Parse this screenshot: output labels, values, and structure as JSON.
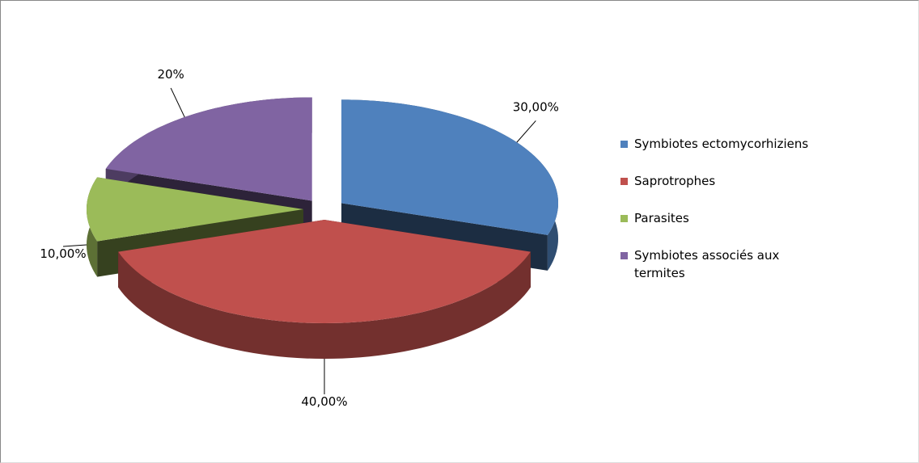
{
  "chart_data": {
    "type": "pie3d",
    "categories": [
      "Symbiotes ectomycorhiziens",
      "Saprotrophes",
      "Parasites",
      "Symbiotes associés aux termites"
    ],
    "values": [
      30,
      40,
      10,
      20
    ],
    "value_labels": [
      "30,00%",
      "40,00%",
      "10,00%",
      "20%"
    ],
    "colors": [
      "#4f81bd",
      "#c0504d",
      "#9bbb59",
      "#8064a2"
    ],
    "legend": "right"
  }
}
